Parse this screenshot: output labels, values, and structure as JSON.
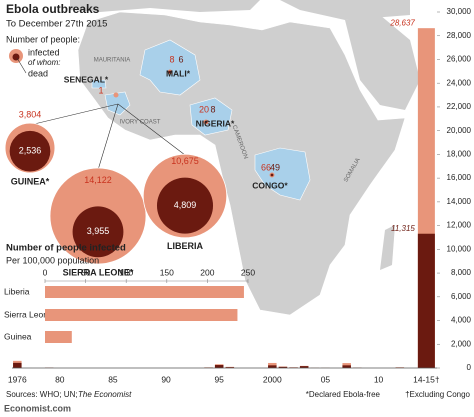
{
  "header": {
    "title": "Ebola outbreaks",
    "subtitle": "To December 27th 2015"
  },
  "legend": {
    "title": "Number of people:",
    "of_whom": "of whom:"
  },
  "map": {
    "places": [
      "MAURITANIA",
      "IVORY COAST",
      "CAMEROON",
      "SOMALIA"
    ],
    "countries": [
      {
        "name": "SENEGAL*",
        "infected": 1
      },
      {
        "name": "MALI*",
        "infected": 8,
        "dead": 6
      },
      {
        "name": "NIGERIA*",
        "infected": 20,
        "dead": 8
      },
      {
        "name": "CONGO*",
        "infected": 66,
        "dead": 49
      },
      {
        "name": "GUINEA*",
        "infected": 3804,
        "dead": 2536,
        "infected_label": "3,804",
        "dead_label": "2,536"
      },
      {
        "name": "SIERRA LEONE*",
        "infected": 14122,
        "dead": 3955,
        "infected_label": "14,122",
        "dead_label": "3,955"
      },
      {
        "name": "LIBERIA",
        "infected": 10675,
        "dead": 4809,
        "infected_label": "10,675",
        "dead_label": "4,809"
      }
    ]
  },
  "chart_data": [
    {
      "type": "bar",
      "categories": [
        "1976",
        null,
        null,
        null,
        "80",
        null,
        null,
        null,
        null,
        "85",
        null,
        null,
        null,
        null,
        "90",
        null,
        null,
        null,
        null,
        "95",
        null,
        null,
        null,
        null,
        "2000",
        null,
        null,
        null,
        null,
        "05",
        null,
        null,
        null,
        null,
        "10",
        null,
        null,
        null,
        "14-15†"
      ],
      "series": [
        {
          "name": "infected",
          "color": "#e8957a",
          "values": [
            602,
            1,
            0,
            34,
            0,
            0,
            0,
            0,
            0,
            0,
            0,
            0,
            0,
            0,
            0,
            0,
            0,
            0,
            52,
            315,
            97,
            0,
            0,
            0,
            425,
            122,
            59,
            178,
            17,
            12,
            0,
            413,
            32,
            0,
            0,
            0,
            62,
            0,
            28637
          ],
          "value_labels": [
            null,
            null,
            null,
            null,
            null,
            null,
            null,
            null,
            null,
            null,
            null,
            null,
            null,
            null,
            null,
            null,
            null,
            null,
            null,
            null,
            null,
            null,
            null,
            null,
            null,
            null,
            null,
            null,
            null,
            null,
            null,
            null,
            null,
            null,
            null,
            null,
            null,
            null,
            "28,637"
          ]
        },
        {
          "name": "dead",
          "color": "#6b1a10",
          "values": [
            431,
            1,
            0,
            22,
            0,
            0,
            0,
            0,
            0,
            0,
            0,
            0,
            0,
            0,
            0,
            0,
            0,
            0,
            31,
            250,
            66,
            0,
            0,
            0,
            224,
            96,
            44,
            157,
            7,
            10,
            0,
            224,
            15,
            0,
            0,
            0,
            34,
            0,
            11315
          ],
          "value_labels": [
            null,
            null,
            null,
            null,
            null,
            null,
            null,
            null,
            null,
            null,
            null,
            null,
            null,
            null,
            null,
            null,
            null,
            null,
            null,
            null,
            null,
            null,
            null,
            null,
            null,
            null,
            null,
            null,
            null,
            null,
            null,
            null,
            null,
            null,
            null,
            null,
            null,
            null,
            "11,315"
          ]
        }
      ],
      "ylim": [
        0,
        30000
      ],
      "yticks": [
        0,
        {
          "value": 2000,
          "label": "2,000"
        },
        {
          "value": 4000,
          "label": "4,000"
        },
        {
          "value": 6000,
          "label": "6,000"
        },
        {
          "value": 8000,
          "label": "8,000"
        },
        {
          "value": 10000,
          "label": "10,000"
        },
        {
          "value": 12000,
          "label": "12,000"
        },
        {
          "value": 14000,
          "label": "14,000"
        },
        {
          "value": 16000,
          "label": "16,000"
        },
        {
          "value": 18000,
          "label": "18,000"
        },
        {
          "value": 20000,
          "label": "20,000"
        },
        {
          "value": 22000,
          "label": "22,000"
        },
        {
          "value": 24000,
          "label": "24,000"
        },
        {
          "value": 26000,
          "label": "26,000"
        },
        {
          "value": 28000,
          "label": "28,000"
        },
        {
          "value": 30000,
          "label": "30,000"
        }
      ],
      "grid": false
    },
    {
      "type": "barh",
      "title": "Number of people infected",
      "subtitle": "Per 100,000 population",
      "categories": [
        "Liberia",
        "Sierra Leone",
        "Guinea"
      ],
      "values": [
        245,
        237,
        33
      ],
      "color": "#e8957a",
      "xlim": [
        0,
        250
      ],
      "xticks": [
        0,
        50,
        100,
        150,
        200,
        250
      ]
    }
  ],
  "footer": {
    "brand": "Economist.com",
    "source": "Sources: WHO; UN;",
    "source_italic": "The Economist",
    "note1": "*Declared Ebola-free",
    "note2": "†Excluding Congo"
  }
}
